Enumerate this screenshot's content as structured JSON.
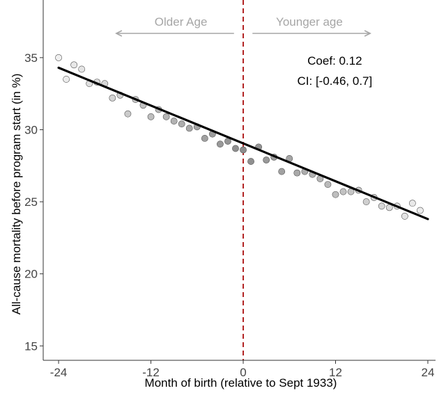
{
  "chart_data": {
    "type": "scatter",
    "title": "",
    "xlabel": "Month of birth (relative to Sept 1933)",
    "ylabel": "All-cause mortality before program start (in %)",
    "xlim": [
      -26,
      25
    ],
    "ylim": [
      14,
      39
    ],
    "xticks": [
      -24,
      -12,
      0,
      12,
      24
    ],
    "yticks": [
      15,
      20,
      25,
      30,
      35
    ],
    "grid": false,
    "cutoff_x": 0,
    "annotations": {
      "left_arrow_label": "Older Age",
      "right_arrow_label": "Younger age",
      "coef_text": "Coef: 0.12",
      "ci_text": "CI: [-0.46, 0.7]"
    },
    "fit_line": {
      "x": [
        -24,
        24
      ],
      "y": [
        34.3,
        23.8
      ]
    },
    "points": [
      {
        "x": -24,
        "y": 35.0
      },
      {
        "x": -23,
        "y": 33.5
      },
      {
        "x": -22,
        "y": 34.5
      },
      {
        "x": -21,
        "y": 34.2
      },
      {
        "x": -20,
        "y": 33.2
      },
      {
        "x": -19,
        "y": 33.3
      },
      {
        "x": -18,
        "y": 33.2
      },
      {
        "x": -17,
        "y": 32.2
      },
      {
        "x": -16,
        "y": 32.4
      },
      {
        "x": -15,
        "y": 31.1
      },
      {
        "x": -14,
        "y": 32.1
      },
      {
        "x": -13,
        "y": 31.7
      },
      {
        "x": -12,
        "y": 30.9
      },
      {
        "x": -11,
        "y": 31.4
      },
      {
        "x": -10,
        "y": 30.9
      },
      {
        "x": -9,
        "y": 30.6
      },
      {
        "x": -8,
        "y": 30.4
      },
      {
        "x": -7,
        "y": 30.1
      },
      {
        "x": -6,
        "y": 30.2
      },
      {
        "x": -5,
        "y": 29.4
      },
      {
        "x": -4,
        "y": 29.7
      },
      {
        "x": -3,
        "y": 29.0
      },
      {
        "x": -2,
        "y": 29.2
      },
      {
        "x": -1,
        "y": 28.7
      },
      {
        "x": 0,
        "y": 28.6
      },
      {
        "x": 1,
        "y": 27.8
      },
      {
        "x": 2,
        "y": 28.8
      },
      {
        "x": 3,
        "y": 27.9
      },
      {
        "x": 4,
        "y": 28.1
      },
      {
        "x": 5,
        "y": 27.1
      },
      {
        "x": 6,
        "y": 28.0
      },
      {
        "x": 7,
        "y": 27.0
      },
      {
        "x": 8,
        "y": 27.1
      },
      {
        "x": 9,
        "y": 26.9
      },
      {
        "x": 10,
        "y": 26.6
      },
      {
        "x": 11,
        "y": 26.2
      },
      {
        "x": 12,
        "y": 25.5
      },
      {
        "x": 13,
        "y": 25.7
      },
      {
        "x": 14,
        "y": 25.7
      },
      {
        "x": 15,
        "y": 25.8
      },
      {
        "x": 16,
        "y": 25.0
      },
      {
        "x": 17,
        "y": 25.3
      },
      {
        "x": 18,
        "y": 24.7
      },
      {
        "x": 19,
        "y": 24.6
      },
      {
        "x": 20,
        "y": 24.7
      },
      {
        "x": 21,
        "y": 24.0
      },
      {
        "x": 22,
        "y": 24.9
      },
      {
        "x": 23,
        "y": 24.4
      }
    ],
    "colors": {
      "axis": "#333333",
      "fit_line": "#000000",
      "cutoff_line": "#b22222",
      "arrow": "#a6a6a6",
      "point_near": "#8c8c8c",
      "point_far": "#f0f0f0"
    }
  }
}
